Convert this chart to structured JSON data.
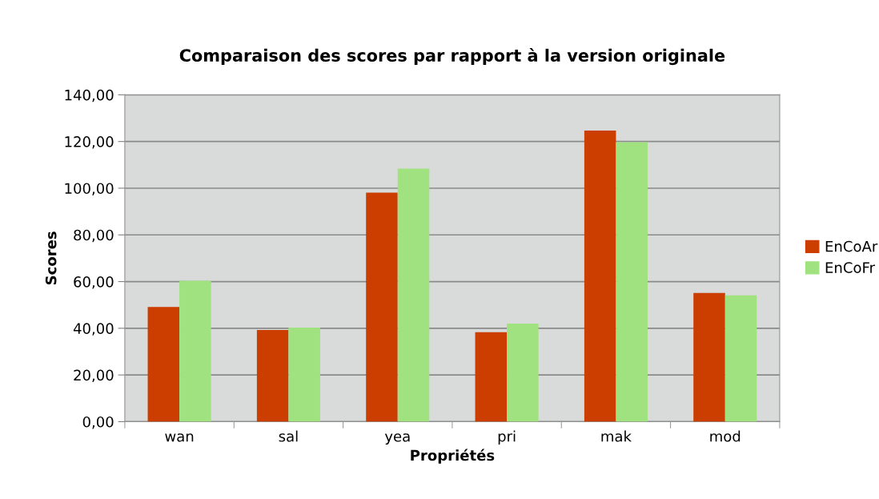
{
  "chart_data": {
    "type": "bar",
    "title": "Comparaison des scores par rapport à la version originale",
    "xlabel": "Propriétés",
    "ylabel": "Scores",
    "categories": [
      "wan",
      "sal",
      "yea",
      "pri",
      "mak",
      "mod"
    ],
    "series": [
      {
        "name": "EnCoAr",
        "color": "#cc3d00",
        "values": [
          49.1,
          39.3,
          98.1,
          38.3,
          124.7,
          55.1
        ]
      },
      {
        "name": "EnCoFr",
        "color": "#a0e27f",
        "values": [
          60.4,
          40.3,
          108.4,
          42.0,
          119.7,
          54.1
        ]
      }
    ],
    "ylim": [
      0,
      140
    ],
    "yticks": [
      {
        "value": 0,
        "label": "0,00"
      },
      {
        "value": 20,
        "label": "20,00"
      },
      {
        "value": 40,
        "label": "40,00"
      },
      {
        "value": 60,
        "label": "60,00"
      },
      {
        "value": 80,
        "label": "80,00"
      },
      {
        "value": 100,
        "label": "100,00"
      },
      {
        "value": 120,
        "label": "120,00"
      },
      {
        "value": 140,
        "label": "140,00"
      }
    ],
    "grid": "y",
    "legend": "right"
  }
}
